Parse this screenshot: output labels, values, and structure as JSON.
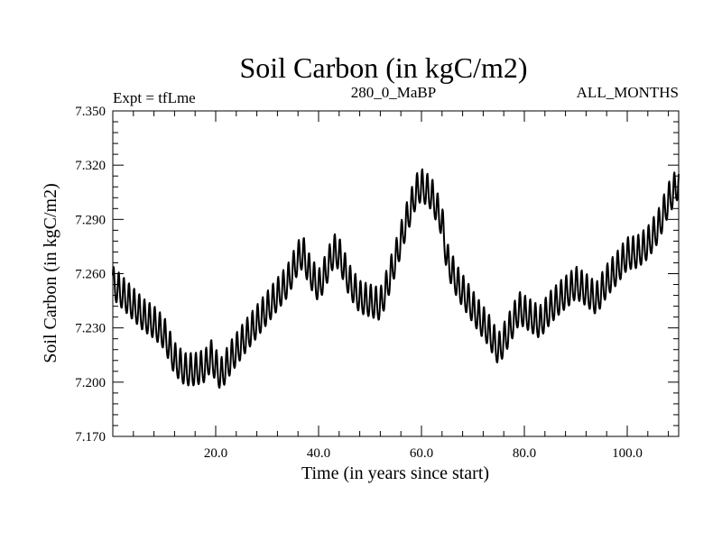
{
  "colors": {
    "line": "#000000",
    "background": "#ffffff",
    "axis": "#000000"
  },
  "chart_data": {
    "type": "line",
    "title": "Soil Carbon (in kgC/m2)",
    "subtitle_left": "Expt = tfLme",
    "subtitle_center": "280_0_MaBP",
    "subtitle_right": "ALL_MONTHS",
    "xlabel": "Time (in years since start)",
    "ylabel": "Soil Carbon (in kgC/m2)",
    "xlim": [
      0,
      110
    ],
    "ylim": [
      7.17,
      7.35
    ],
    "x_ticks": [
      20,
      40,
      60,
      80,
      100
    ],
    "x_tick_labels": [
      "20.0",
      "40.0",
      "60.0",
      "80.0",
      "100.0"
    ],
    "y_ticks": [
      7.17,
      7.2,
      7.23,
      7.26,
      7.29,
      7.32,
      7.35
    ],
    "y_tick_labels": [
      "7.170",
      "7.200",
      "7.230",
      "7.260",
      "7.290",
      "7.320",
      "7.350"
    ],
    "seasonal_amplitude": 0.009,
    "series": [
      {
        "name": "Soil Carbon",
        "x": [
          0,
          2,
          4,
          6,
          8,
          10,
          12,
          14,
          16,
          18,
          19,
          21,
          23,
          26,
          30,
          34,
          36,
          37,
          38,
          40,
          41,
          43,
          44,
          46,
          48,
          50,
          52,
          53,
          55,
          57,
          59,
          60,
          62,
          64,
          65,
          67,
          69,
          71,
          73,
          75,
          77,
          79,
          81,
          83,
          85,
          87,
          89,
          90,
          92,
          94,
          96,
          98,
          100,
          102,
          104,
          106,
          108,
          110
        ],
        "values": [
          7.254,
          7.248,
          7.242,
          7.236,
          7.232,
          7.226,
          7.212,
          7.206,
          7.206,
          7.208,
          7.214,
          7.203,
          7.213,
          7.225,
          7.24,
          7.255,
          7.268,
          7.271,
          7.262,
          7.252,
          7.258,
          7.272,
          7.27,
          7.255,
          7.246,
          7.244,
          7.242,
          7.25,
          7.268,
          7.288,
          7.305,
          7.308,
          7.303,
          7.288,
          7.267,
          7.254,
          7.245,
          7.236,
          7.228,
          7.217,
          7.228,
          7.24,
          7.236,
          7.232,
          7.24,
          7.246,
          7.251,
          7.254,
          7.25,
          7.245,
          7.255,
          7.262,
          7.27,
          7.271,
          7.276,
          7.285,
          7.3,
          7.31
        ]
      }
    ]
  }
}
